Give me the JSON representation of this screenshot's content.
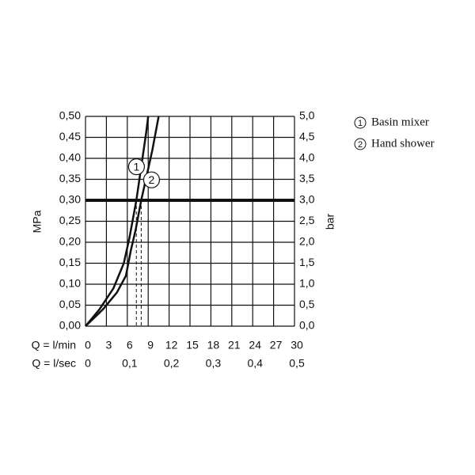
{
  "chart_data": {
    "type": "line",
    "xlabel": "Q = l/min",
    "x2label": "Q = l/sec",
    "ylabel": "MPa",
    "y2label": "bar",
    "xlim": [
      0,
      30
    ],
    "xticks": [
      0,
      3,
      6,
      9,
      12,
      15,
      18,
      21,
      24,
      27,
      30
    ],
    "x2ticks": [
      {
        "value": 0,
        "label": "0"
      },
      {
        "value": 6,
        "label": "0,1"
      },
      {
        "value": 12,
        "label": "0,2"
      },
      {
        "value": 18,
        "label": "0,3"
      },
      {
        "value": 24,
        "label": "0,4"
      },
      {
        "value": 30,
        "label": "0,5"
      }
    ],
    "ylim": [
      0,
      0.5
    ],
    "yticks": [
      {
        "value": 0,
        "label": "0,00"
      },
      {
        "value": 0.05,
        "label": "0,05"
      },
      {
        "value": 0.1,
        "label": "0,10"
      },
      {
        "value": 0.15,
        "label": "0,15"
      },
      {
        "value": 0.2,
        "label": "0,20"
      },
      {
        "value": 0.25,
        "label": "0,25"
      },
      {
        "value": 0.3,
        "label": "0,30"
      },
      {
        "value": 0.35,
        "label": "0,35"
      },
      {
        "value": 0.4,
        "label": "0,40"
      },
      {
        "value": 0.45,
        "label": "0,45"
      },
      {
        "value": 0.5,
        "label": "0,50"
      }
    ],
    "y2lim": [
      0,
      5
    ],
    "y2ticks": [
      {
        "value": 0,
        "label": "0,0"
      },
      {
        "value": 0.5,
        "label": "0,5"
      },
      {
        "value": 1,
        "label": "1,0"
      },
      {
        "value": 1.5,
        "label": "1,5"
      },
      {
        "value": 2,
        "label": "2,0"
      },
      {
        "value": 2.5,
        "label": "2,5"
      },
      {
        "value": 3,
        "label": "3,0"
      },
      {
        "value": 3.5,
        "label": "3,5"
      },
      {
        "value": 4,
        "label": "4,0"
      },
      {
        "value": 4.5,
        "label": "4,5"
      },
      {
        "value": 5,
        "label": "5,0"
      }
    ],
    "grid": true,
    "reference_line": 0.3,
    "series": [
      {
        "name": "Basin mixer",
        "marker": "1",
        "color": "#111111",
        "x": [
          0,
          2,
          4,
          5.5,
          6.3,
          7.3,
          8.0,
          8.7,
          9.0
        ],
        "values": [
          0,
          0.04,
          0.09,
          0.15,
          0.21,
          0.3,
          0.38,
          0.46,
          0.5
        ]
      },
      {
        "name": "Hand shower",
        "marker": "2",
        "color": "#111111",
        "x": [
          0,
          2.5,
          4.5,
          5.8,
          6.5,
          7.2,
          8.0,
          8.8,
          9.6,
          10.5
        ],
        "values": [
          0,
          0.04,
          0.08,
          0.12,
          0.18,
          0.23,
          0.3,
          0.36,
          0.42,
          0.5
        ]
      }
    ]
  }
}
